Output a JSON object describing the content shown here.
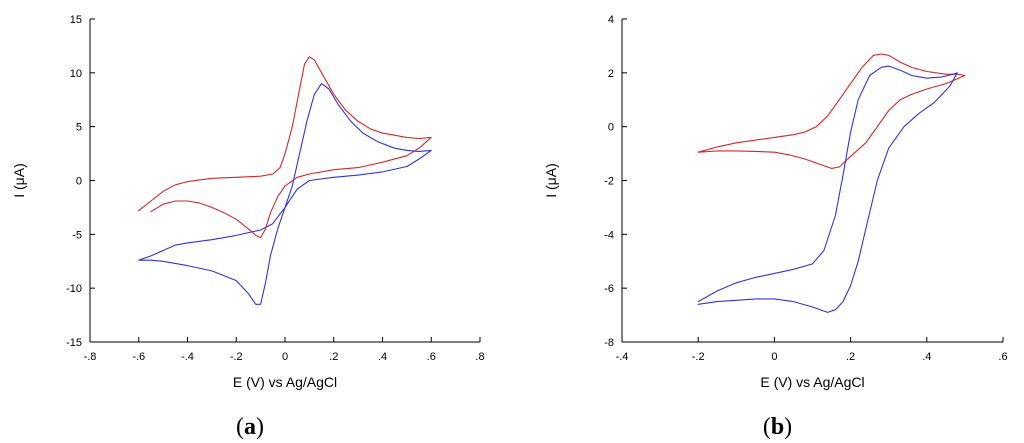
{
  "chart_data": [
    {
      "type": "line",
      "panel_label": "a",
      "xlabel": "E (V) vs Ag/AgCl",
      "ylabel": "I (μA)",
      "xlim": [
        -0.8,
        0.8
      ],
      "ylim": [
        -15,
        15
      ],
      "xticks": [
        -0.8,
        -0.6,
        -0.4,
        -0.2,
        0,
        0.2,
        0.4,
        0.6,
        0.8
      ],
      "yticks": [
        -15,
        -10,
        -5,
        0,
        5,
        10,
        15
      ],
      "grid": false,
      "series": [
        {
          "color": "#d62728",
          "points": [
            [
              -0.6,
              -2.8
            ],
            [
              -0.55,
              -1.9
            ],
            [
              -0.5,
              -1.0
            ],
            [
              -0.45,
              -0.4
            ],
            [
              -0.4,
              -0.1
            ],
            [
              -0.3,
              0.2
            ],
            [
              -0.2,
              0.3
            ],
            [
              -0.1,
              0.4
            ],
            [
              -0.05,
              0.6
            ],
            [
              -0.02,
              1.2
            ],
            [
              0.0,
              2.5
            ],
            [
              0.03,
              5.0
            ],
            [
              0.06,
              8.5
            ],
            [
              0.08,
              10.8
            ],
            [
              0.1,
              11.5
            ],
            [
              0.12,
              11.2
            ],
            [
              0.15,
              10.0
            ],
            [
              0.2,
              8.0
            ],
            [
              0.25,
              6.5
            ],
            [
              0.3,
              5.5
            ],
            [
              0.35,
              4.8
            ],
            [
              0.4,
              4.4
            ],
            [
              0.5,
              4.0
            ],
            [
              0.55,
              3.9
            ],
            [
              0.6,
              4.0
            ],
            [
              0.55,
              3.0
            ],
            [
              0.5,
              2.3
            ],
            [
              0.4,
              1.7
            ],
            [
              0.3,
              1.2
            ],
            [
              0.2,
              1.0
            ],
            [
              0.1,
              0.6
            ],
            [
              0.05,
              0.3
            ],
            [
              0.0,
              -0.5
            ],
            [
              -0.03,
              -1.5
            ],
            [
              -0.06,
              -3.0
            ],
            [
              -0.08,
              -4.5
            ],
            [
              -0.1,
              -5.3
            ],
            [
              -0.12,
              -5.1
            ],
            [
              -0.15,
              -4.5
            ],
            [
              -0.2,
              -3.6
            ],
            [
              -0.25,
              -3.0
            ],
            [
              -0.3,
              -2.5
            ],
            [
              -0.35,
              -2.1
            ],
            [
              -0.4,
              -1.9
            ],
            [
              -0.45,
              -1.9
            ],
            [
              -0.5,
              -2.2
            ],
            [
              -0.55,
              -2.9
            ]
          ]
        },
        {
          "color": "#3333dd",
          "points": [
            [
              -0.6,
              -7.4
            ],
            [
              -0.55,
              -7.0
            ],
            [
              -0.5,
              -6.5
            ],
            [
              -0.45,
              -6.0
            ],
            [
              -0.4,
              -5.8
            ],
            [
              -0.3,
              -5.5
            ],
            [
              -0.2,
              -5.1
            ],
            [
              -0.1,
              -4.6
            ],
            [
              -0.05,
              -4.0
            ],
            [
              0.0,
              -2.5
            ],
            [
              0.03,
              -0.5
            ],
            [
              0.06,
              2.5
            ],
            [
              0.09,
              5.5
            ],
            [
              0.12,
              8.0
            ],
            [
              0.15,
              9.0
            ],
            [
              0.18,
              8.5
            ],
            [
              0.22,
              7.0
            ],
            [
              0.27,
              5.5
            ],
            [
              0.32,
              4.4
            ],
            [
              0.38,
              3.6
            ],
            [
              0.45,
              3.0
            ],
            [
              0.5,
              2.8
            ],
            [
              0.55,
              2.7
            ],
            [
              0.6,
              2.8
            ],
            [
              0.55,
              2.0
            ],
            [
              0.5,
              1.3
            ],
            [
              0.4,
              0.8
            ],
            [
              0.3,
              0.5
            ],
            [
              0.2,
              0.3
            ],
            [
              0.1,
              0.0
            ],
            [
              0.05,
              -0.8
            ],
            [
              0.0,
              -2.5
            ],
            [
              -0.03,
              -4.5
            ],
            [
              -0.06,
              -7.0
            ],
            [
              -0.08,
              -9.5
            ],
            [
              -0.1,
              -11.5
            ],
            [
              -0.12,
              -11.5
            ],
            [
              -0.15,
              -10.5
            ],
            [
              -0.2,
              -9.3
            ],
            [
              -0.3,
              -8.4
            ],
            [
              -0.4,
              -7.9
            ],
            [
              -0.5,
              -7.5
            ],
            [
              -0.55,
              -7.4
            ],
            [
              -0.6,
              -7.4
            ]
          ]
        }
      ]
    },
    {
      "type": "line",
      "panel_label": "b",
      "xlabel": "E (V) vs Ag/AgCl",
      "ylabel": "I (μA)",
      "xlim": [
        -0.4,
        0.6
      ],
      "ylim": [
        -8,
        4
      ],
      "xticks": [
        -0.4,
        -0.2,
        0,
        0.2,
        0.4,
        0.6
      ],
      "yticks": [
        -8,
        -6,
        -4,
        -2,
        0,
        2,
        4
      ],
      "grid": false,
      "series": [
        {
          "color": "#d62728",
          "points": [
            [
              -0.2,
              -0.95
            ],
            [
              -0.15,
              -0.75
            ],
            [
              -0.1,
              -0.6
            ],
            [
              -0.05,
              -0.5
            ],
            [
              0.0,
              -0.4
            ],
            [
              0.05,
              -0.3
            ],
            [
              0.08,
              -0.2
            ],
            [
              0.11,
              0.0
            ],
            [
              0.14,
              0.4
            ],
            [
              0.17,
              1.0
            ],
            [
              0.2,
              1.6
            ],
            [
              0.23,
              2.2
            ],
            [
              0.26,
              2.65
            ],
            [
              0.28,
              2.7
            ],
            [
              0.3,
              2.65
            ],
            [
              0.33,
              2.4
            ],
            [
              0.36,
              2.2
            ],
            [
              0.4,
              2.05
            ],
            [
              0.45,
              1.95
            ],
            [
              0.48,
              1.95
            ],
            [
              0.5,
              1.9
            ],
            [
              0.45,
              1.6
            ],
            [
              0.4,
              1.4
            ],
            [
              0.36,
              1.2
            ],
            [
              0.33,
              1.0
            ],
            [
              0.3,
              0.6
            ],
            [
              0.27,
              0.0
            ],
            [
              0.24,
              -0.6
            ],
            [
              0.2,
              -1.1
            ],
            [
              0.17,
              -1.5
            ],
            [
              0.15,
              -1.55
            ],
            [
              0.12,
              -1.4
            ],
            [
              0.08,
              -1.2
            ],
            [
              0.04,
              -1.05
            ],
            [
              0.0,
              -0.95
            ],
            [
              -0.05,
              -0.92
            ],
            [
              -0.1,
              -0.9
            ],
            [
              -0.15,
              -0.9
            ],
            [
              -0.2,
              -0.95
            ]
          ]
        },
        {
          "color": "#3333dd",
          "points": [
            [
              -0.2,
              -6.5
            ],
            [
              -0.15,
              -6.1
            ],
            [
              -0.1,
              -5.8
            ],
            [
              -0.05,
              -5.6
            ],
            [
              0.0,
              -5.45
            ],
            [
              0.05,
              -5.3
            ],
            [
              0.1,
              -5.1
            ],
            [
              0.13,
              -4.6
            ],
            [
              0.16,
              -3.3
            ],
            [
              0.18,
              -1.8
            ],
            [
              0.2,
              -0.2
            ],
            [
              0.22,
              1.0
            ],
            [
              0.25,
              1.9
            ],
            [
              0.28,
              2.2
            ],
            [
              0.3,
              2.25
            ],
            [
              0.33,
              2.1
            ],
            [
              0.36,
              1.9
            ],
            [
              0.4,
              1.8
            ],
            [
              0.44,
              1.85
            ],
            [
              0.47,
              1.95
            ],
            [
              0.48,
              2.0
            ],
            [
              0.46,
              1.5
            ],
            [
              0.42,
              0.9
            ],
            [
              0.38,
              0.5
            ],
            [
              0.34,
              0.0
            ],
            [
              0.3,
              -0.8
            ],
            [
              0.27,
              -2.0
            ],
            [
              0.24,
              -3.8
            ],
            [
              0.22,
              -5.0
            ],
            [
              0.2,
              -5.9
            ],
            [
              0.18,
              -6.5
            ],
            [
              0.16,
              -6.8
            ],
            [
              0.14,
              -6.9
            ],
            [
              0.1,
              -6.7
            ],
            [
              0.05,
              -6.5
            ],
            [
              0.0,
              -6.4
            ],
            [
              -0.05,
              -6.4
            ],
            [
              -0.1,
              -6.45
            ],
            [
              -0.15,
              -6.5
            ],
            [
              -0.2,
              -6.6
            ]
          ]
        }
      ]
    }
  ]
}
